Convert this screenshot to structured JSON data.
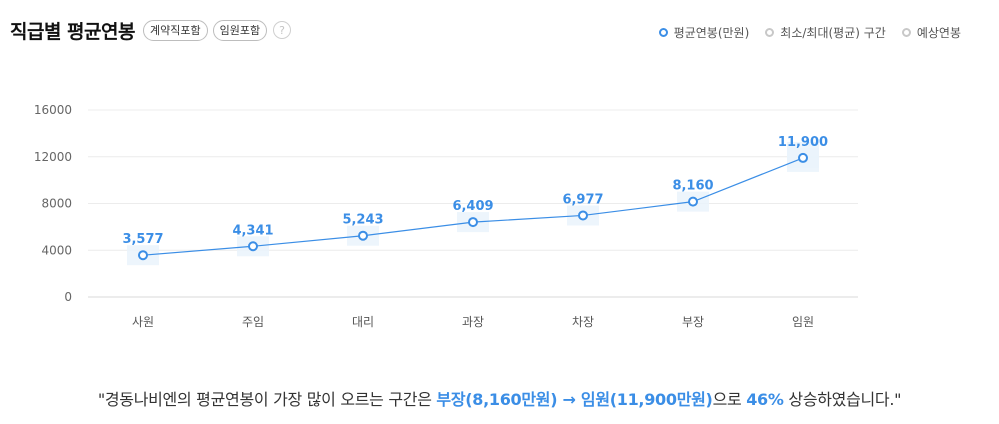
{
  "header": {
    "title": "직급별 평균연봉",
    "tags": [
      "계약직포함",
      "임원포함"
    ],
    "help_label": "?"
  },
  "legend": [
    {
      "label": "평균연봉(만원)",
      "color": "#3b8ee6"
    },
    {
      "label": "최소/최대(평균) 구간",
      "color": "#c8c8c8"
    },
    {
      "label": "예상연봉",
      "color": "#c8c8c8"
    }
  ],
  "chart_data": {
    "type": "line",
    "categories": [
      "사원",
      "주임",
      "대리",
      "과장",
      "차장",
      "부장",
      "임원"
    ],
    "series": [
      {
        "name": "평균연봉(만원)",
        "values": [
          3577,
          4341,
          5243,
          6409,
          6977,
          8160,
          11900
        ]
      }
    ],
    "value_labels": [
      "3,577",
      "4,341",
      "5,243",
      "6,409",
      "6,977",
      "8,160",
      "11,900"
    ],
    "yticks": [
      0,
      4000,
      8000,
      12000,
      16000
    ],
    "ylim": [
      0,
      16000
    ],
    "grid": true,
    "line_color": "#3b8ee6"
  },
  "summary": {
    "before": "\"경동나비엔의 평균연봉이 가장 많이 오르는 구간은 ",
    "from": "부장(8,160만원)",
    "arrow": " → ",
    "to": "임원(11,900만원)",
    "middle": "으로 ",
    "percent": "46%",
    "after": " 상승하였습니다.\""
  }
}
